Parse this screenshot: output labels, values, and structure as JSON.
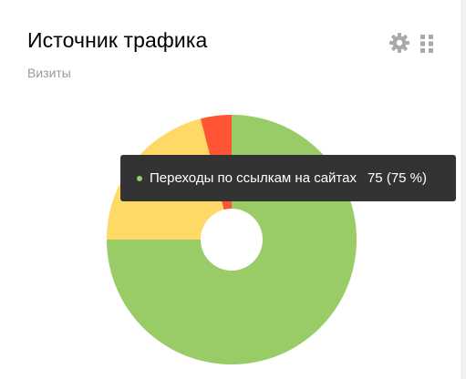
{
  "header": {
    "title": "Источник трафика",
    "subtitle": "Визиты",
    "settings_icon": "gear-icon",
    "drag_icon": "drag-handle-icon"
  },
  "chart_data": {
    "type": "pie",
    "donut": true,
    "series": [
      {
        "name": "Переходы по ссылкам на сайтах",
        "value": 75,
        "color": "#99cc66"
      },
      {
        "name": "",
        "value": 21,
        "color": "#ffd966"
      },
      {
        "name": "",
        "value": 4,
        "color": "#ff5533"
      }
    ],
    "unit": "визиты"
  },
  "tooltip": {
    "series_name": "Переходы по ссылкам на сайтах",
    "value_text": "75 (75 %)",
    "color": "#99cc66"
  }
}
